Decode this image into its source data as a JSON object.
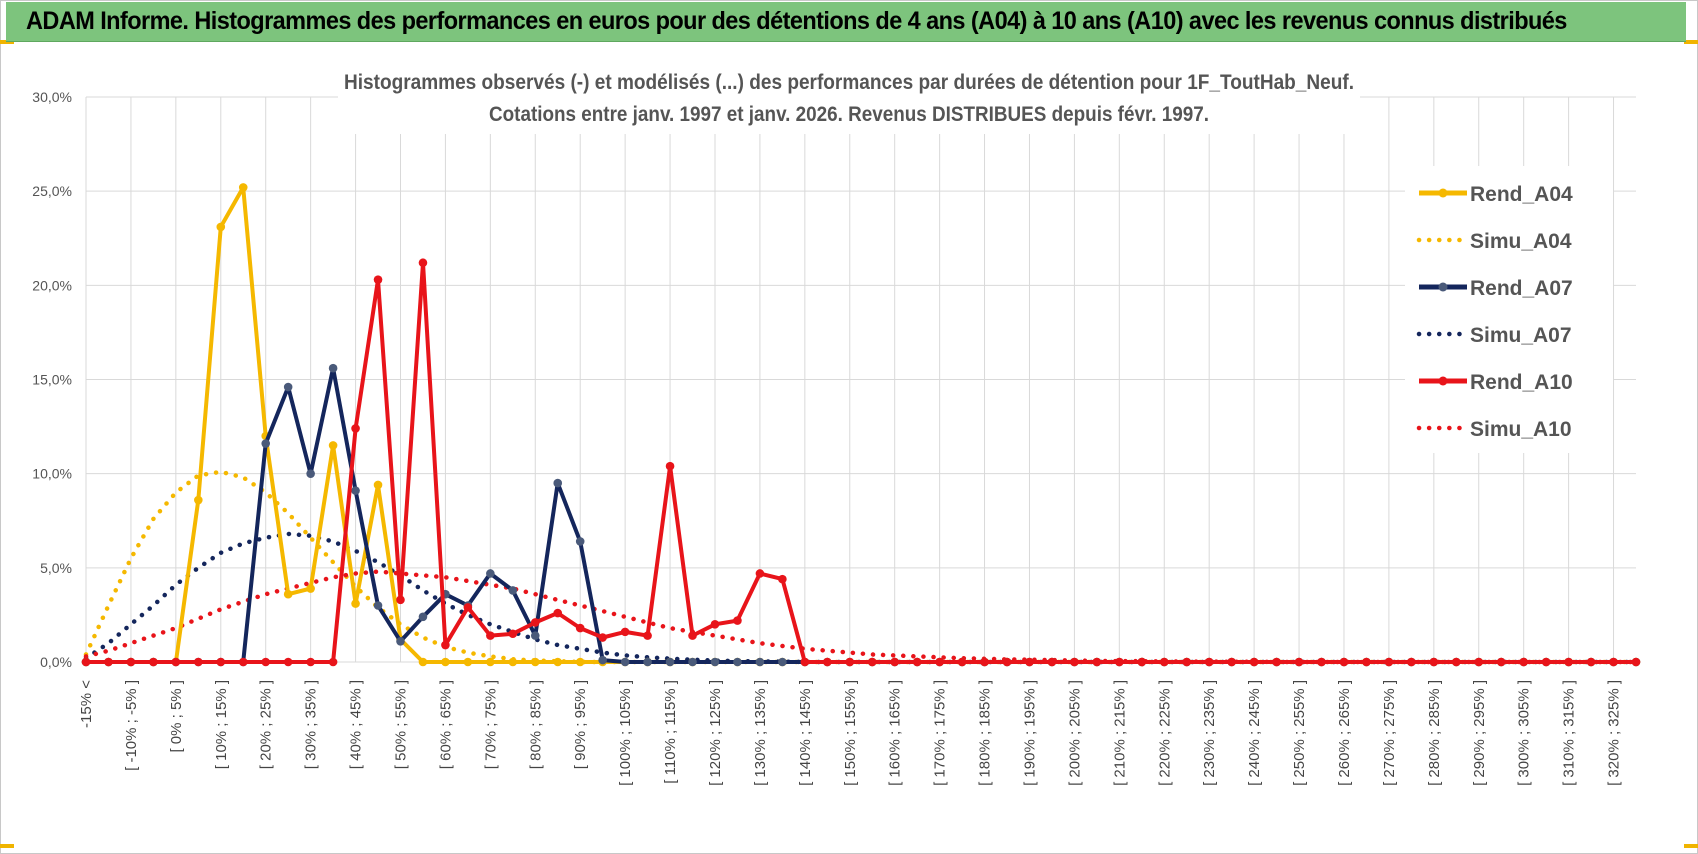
{
  "banner": {
    "title": "ADAM Informe. Histogrammes des performances en euros pour des détentions de 4 ans (A04) à 10 ans (A10) avec les revenus connus distribués",
    "background": "#7dc47d"
  },
  "chart_data": {
    "type": "line",
    "title": "Histogrammes observés (-) et modélisés (...) des performances par durées de détention pour 1F_ToutHab_Neuf.",
    "subtitle": "Cotations entre janv. 1997 et janv. 2026. Revenus DISTRIBUES depuis févr. 1997.",
    "ylim": [
      0,
      30
    ],
    "yticks": [
      "0,0%",
      "5,0%",
      "10,0%",
      "15,0%",
      "20,0%",
      "25,0%",
      "30,0%"
    ],
    "grid": true,
    "legend_position": "right",
    "x_labels": [
      "-15% <",
      "[ -10% ; -5% ]",
      "[ 0% ; 5% ]",
      "[ 10% ; 15% ]",
      "[ 20% ; 25% ]",
      "[ 30% ; 35% ]",
      "[ 40% ; 45% ]",
      "[ 50% ; 55% ]",
      "[ 60% ; 65% ]",
      "[ 70% ; 75% ]",
      "[ 80% ; 85% ]",
      "[ 90% ; 95% ]",
      "[ 100% ; 105% ]",
      "[ 110% ; 115% ]",
      "[ 120% ; 125% ]",
      "[ 130% ; 135% ]",
      "[ 140% ; 145% ]",
      "[ 150% ; 155% ]",
      "[ 160% ; 165% ]",
      "[ 170% ; 175% ]",
      "[ 180% ; 185% ]",
      "[ 190% ; 195% ]",
      "[ 200% ; 205% ]",
      "[ 210% ; 215% ]",
      "[ 220% ; 225% ]",
      "[ 230% ; 235% ]",
      "[ 240% ; 245% ]",
      "[ 250% ; 255% ]",
      "[ 260% ; 265% ]",
      "[ 270% ; 275% ]",
      "[ 280% ; 285% ]",
      "[ 290% ; 295% ]",
      "[ 300% ; 305% ]",
      "[ 310% ; 315% ]",
      "[ 320% ; 325% ]"
    ],
    "series": [
      {
        "name": "Rend_A04",
        "color": "#f5b800",
        "style": "solid",
        "values": [
          0,
          0,
          0,
          0,
          0,
          8.6,
          23.1,
          25.2,
          12.0,
          3.6,
          3.9,
          11.5,
          3.1,
          9.4,
          1.2,
          0,
          0,
          0,
          0,
          0,
          0,
          0,
          0,
          0,
          0,
          0,
          0,
          0,
          0,
          0,
          0,
          0,
          0,
          0,
          0,
          0,
          0,
          0,
          0,
          0,
          0,
          0,
          0,
          0,
          0,
          0,
          0,
          0,
          0,
          0,
          0,
          0,
          0,
          0,
          0,
          0,
          0,
          0,
          0,
          0,
          0,
          0,
          0,
          0,
          0,
          0,
          0,
          0,
          0,
          0
        ]
      },
      {
        "name": "Simu_A04",
        "color": "#f5b800",
        "style": "dotted",
        "values": [
          0.4,
          3.0,
          5.5,
          7.6,
          9.0,
          9.9,
          10.1,
          9.8,
          9.0,
          7.9,
          6.6,
          5.3,
          4.0,
          2.9,
          2.0,
          1.3,
          0.8,
          0.5,
          0.3,
          0.15,
          0.08,
          0.04,
          0,
          0,
          0,
          0,
          0,
          0,
          0,
          0,
          0,
          0,
          0,
          0,
          0,
          0,
          0,
          0,
          0,
          0,
          0,
          0,
          0,
          0,
          0,
          0,
          0,
          0,
          0,
          0,
          0,
          0,
          0,
          0,
          0,
          0,
          0,
          0,
          0,
          0,
          0,
          0,
          0,
          0,
          0,
          0,
          0,
          0,
          0,
          0
        ]
      },
      {
        "name": "Rend_A07",
        "color": "#14265c",
        "style": "solid",
        "values": [
          0,
          0,
          0,
          0,
          0,
          0,
          0,
          0,
          11.6,
          14.6,
          10.0,
          15.6,
          9.1,
          3.0,
          1.1,
          2.4,
          3.6,
          3.0,
          4.7,
          3.8,
          1.4,
          9.5,
          6.4,
          0.1,
          0,
          0,
          0,
          0,
          0,
          0,
          0,
          0,
          0,
          0,
          0,
          0,
          0,
          0,
          0,
          0,
          0,
          0,
          0,
          0,
          0,
          0,
          0,
          0,
          0,
          0,
          0,
          0,
          0,
          0,
          0,
          0,
          0,
          0,
          0,
          0,
          0,
          0,
          0,
          0,
          0,
          0,
          0,
          0,
          0,
          0
        ]
      },
      {
        "name": "Simu_A07",
        "color": "#14265c",
        "style": "dotted",
        "values": [
          0.2,
          1.0,
          2.0,
          3.0,
          4.1,
          5.0,
          5.8,
          6.3,
          6.6,
          6.8,
          6.7,
          6.4,
          5.9,
          5.3,
          4.6,
          3.8,
          3.1,
          2.5,
          2.0,
          1.6,
          1.2,
          0.9,
          0.7,
          0.5,
          0.35,
          0.25,
          0.18,
          0.12,
          0.08,
          0.05,
          0.03,
          0.02,
          0,
          0,
          0,
          0,
          0,
          0,
          0,
          0,
          0,
          0,
          0,
          0,
          0,
          0,
          0,
          0,
          0,
          0,
          0,
          0,
          0,
          0,
          0,
          0,
          0,
          0,
          0,
          0,
          0,
          0,
          0,
          0,
          0,
          0,
          0,
          0,
          0,
          0
        ]
      },
      {
        "name": "Rend_A10",
        "color": "#e8141a",
        "style": "solid",
        "values": [
          0,
          0,
          0,
          0,
          0,
          0,
          0,
          0,
          0,
          0,
          0,
          0,
          12.4,
          20.3,
          3.3,
          21.2,
          0.9,
          2.9,
          1.4,
          1.5,
          2.1,
          2.6,
          1.8,
          1.3,
          1.6,
          1.4,
          10.4,
          1.4,
          2.0,
          2.2,
          4.7,
          4.4,
          0,
          0,
          0,
          0,
          0,
          0,
          0,
          0,
          0,
          0,
          0,
          0,
          0,
          0,
          0,
          0,
          0,
          0,
          0,
          0,
          0,
          0,
          0,
          0,
          0,
          0,
          0,
          0,
          0,
          0,
          0,
          0,
          0,
          0,
          0,
          0,
          0,
          0
        ]
      },
      {
        "name": "Simu_A10",
        "color": "#e8141a",
        "style": "dotted",
        "values": [
          0.3,
          0.6,
          1.0,
          1.4,
          1.8,
          2.3,
          2.8,
          3.2,
          3.6,
          3.9,
          4.2,
          4.5,
          4.7,
          4.8,
          4.7,
          4.6,
          4.5,
          4.3,
          4.1,
          3.9,
          3.6,
          3.3,
          3.0,
          2.7,
          2.4,
          2.1,
          1.8,
          1.6,
          1.4,
          1.2,
          1.0,
          0.85,
          0.7,
          0.6,
          0.5,
          0.4,
          0.35,
          0.3,
          0.25,
          0.2,
          0.17,
          0.14,
          0.12,
          0.1,
          0.08,
          0.06,
          0.05,
          0.04,
          0.03,
          0.02,
          0.02,
          0.01,
          0.01,
          0,
          0,
          0,
          0,
          0,
          0,
          0,
          0,
          0,
          0,
          0,
          0,
          0,
          0,
          0,
          0,
          0
        ]
      }
    ]
  }
}
